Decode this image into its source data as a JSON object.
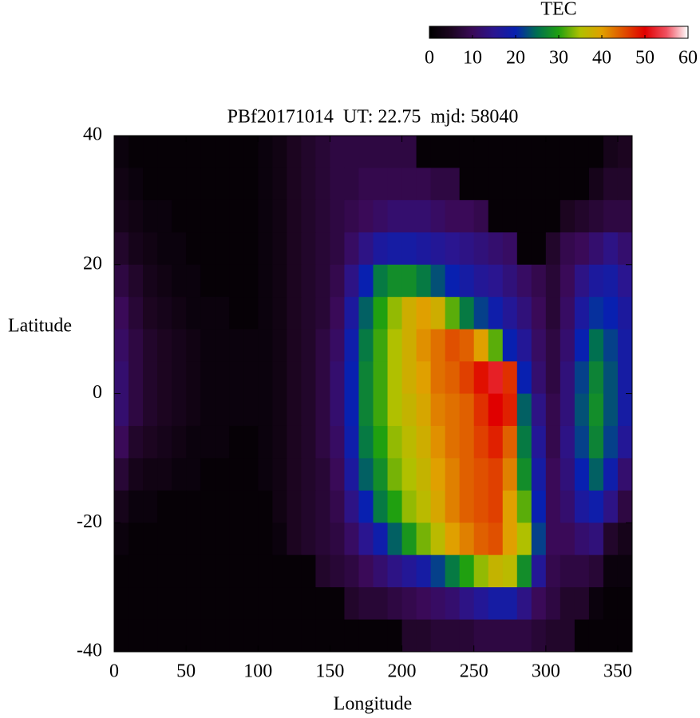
{
  "chart_data": {
    "type": "heatmap",
    "title": "PBf20171014  UT: 22.75  mjd: 58040",
    "x_label": "Longitude",
    "y_label": "Latitude",
    "xlim": [
      0,
      360
    ],
    "xticks": [
      0,
      50,
      100,
      150,
      200,
      250,
      300,
      350
    ],
    "ylim": [
      -40,
      40
    ],
    "yticks": [
      -40,
      -20,
      0,
      20,
      40
    ],
    "colorbar": {
      "label": "TEC",
      "clim": [
        0,
        60
      ],
      "ticks": [
        0,
        10,
        20,
        30,
        40,
        50,
        60
      ],
      "colors": [
        "#000000",
        "#1c0520",
        "#3a0a58",
        "#2a1590",
        "#0820b0",
        "#007050",
        "#20a010",
        "#b0c000",
        "#e0a000",
        "#e05000",
        "#e00000",
        "#f05060",
        "#ffffff"
      ]
    },
    "z": [
      [
        2,
        1,
        1,
        1,
        1,
        1,
        1,
        1,
        1,
        1,
        2,
        3,
        5,
        6,
        7,
        8,
        8,
        8,
        8,
        8,
        8,
        1,
        1,
        1,
        1,
        1,
        1,
        1,
        1,
        1,
        1,
        1,
        1,
        1,
        4,
        5
      ],
      [
        3,
        2,
        1,
        1,
        1,
        1,
        1,
        1,
        1,
        1,
        2,
        3,
        5,
        6,
        7,
        8,
        8,
        9,
        9,
        9,
        9,
        9,
        8,
        8,
        1,
        1,
        1,
        1,
        1,
        1,
        1,
        1,
        1,
        4,
        6,
        6
      ],
      [
        4,
        3,
        2,
        2,
        1,
        1,
        1,
        1,
        1,
        1,
        2,
        3,
        5,
        6,
        7,
        8,
        9,
        10,
        11,
        12,
        12,
        12,
        11,
        10,
        10,
        9,
        1,
        1,
        1,
        1,
        1,
        5,
        6,
        7,
        8,
        8
      ],
      [
        6,
        4,
        3,
        2,
        2,
        1,
        1,
        1,
        1,
        1,
        2,
        3,
        5,
        6,
        7,
        8,
        11,
        14,
        17,
        18,
        18,
        17,
        16,
        15,
        14,
        13,
        12,
        11,
        1,
        1,
        6,
        9,
        10,
        12,
        14,
        12
      ],
      [
        8,
        6,
        4,
        3,
        2,
        2,
        1,
        1,
        1,
        1,
        2,
        3,
        5,
        6,
        7,
        9,
        14,
        20,
        26,
        28,
        28,
        26,
        23,
        20,
        18,
        16,
        15,
        13,
        11,
        9,
        7,
        10,
        14,
        17,
        18,
        15
      ],
      [
        10,
        7,
        5,
        4,
        3,
        2,
        2,
        2,
        1,
        1,
        2,
        3,
        5,
        6,
        7,
        10,
        17,
        24,
        30,
        34,
        38,
        40,
        38,
        32,
        26,
        22,
        19,
        16,
        13,
        10,
        7,
        11,
        17,
        21,
        20,
        17
      ],
      [
        11,
        8,
        6,
        5,
        4,
        3,
        2,
        2,
        2,
        2,
        2,
        3,
        5,
        6,
        8,
        11,
        19,
        26,
        31,
        35,
        38,
        41,
        43,
        45,
        44,
        40,
        32,
        20,
        16,
        11,
        8,
        12,
        20,
        25,
        22,
        18
      ],
      [
        12,
        8,
        6,
        5,
        4,
        3,
        2,
        2,
        2,
        2,
        2,
        3,
        5,
        6,
        8,
        12,
        20,
        27,
        31,
        35,
        38,
        40,
        43,
        44,
        46,
        49,
        52,
        47,
        20,
        12,
        8,
        13,
        22,
        27,
        23,
        18
      ],
      [
        12,
        8,
        6,
        5,
        4,
        3,
        2,
        2,
        2,
        2,
        2,
        3,
        5,
        6,
        8,
        12,
        20,
        27,
        31,
        35,
        37,
        39,
        42,
        43,
        44,
        47,
        50,
        48,
        24,
        14,
        9,
        13,
        23,
        28,
        23,
        18
      ],
      [
        10,
        6,
        5,
        4,
        3,
        2,
        2,
        2,
        1,
        1,
        2,
        3,
        5,
        6,
        8,
        11,
        19,
        26,
        30,
        34,
        36,
        38,
        41,
        43,
        44,
        46,
        48,
        44,
        26,
        16,
        9,
        14,
        22,
        27,
        22,
        16
      ],
      [
        7,
        4,
        3,
        3,
        2,
        2,
        1,
        1,
        1,
        1,
        2,
        3,
        5,
        6,
        7,
        10,
        17,
        24,
        28,
        33,
        35,
        37,
        40,
        42,
        44,
        45,
        46,
        42,
        28,
        18,
        10,
        13,
        20,
        24,
        19,
        12
      ],
      [
        4,
        2,
        2,
        1,
        1,
        1,
        1,
        1,
        1,
        1,
        1,
        3,
        5,
        6,
        7,
        9,
        14,
        20,
        26,
        30,
        34,
        36,
        39,
        42,
        44,
        45,
        46,
        40,
        32,
        20,
        10,
        12,
        17,
        19,
        14,
        8
      ],
      [
        2,
        1,
        1,
        1,
        1,
        1,
        1,
        1,
        1,
        1,
        1,
        2,
        5,
        6,
        7,
        8,
        11,
        15,
        19,
        24,
        29,
        33,
        36,
        40,
        42,
        44,
        45,
        40,
        35,
        22,
        10,
        10,
        12,
        13,
        6,
        4
      ],
      [
        1,
        1,
        1,
        1,
        1,
        1,
        1,
        1,
        1,
        1,
        1,
        1,
        1,
        1,
        6,
        7,
        8,
        10,
        12,
        14,
        16,
        18,
        22,
        26,
        30,
        34,
        37,
        36,
        28,
        16,
        9,
        8,
        8,
        7,
        2,
        2
      ],
      [
        1,
        1,
        1,
        1,
        1,
        1,
        1,
        1,
        1,
        1,
        1,
        1,
        1,
        1,
        1,
        1,
        6,
        7,
        7,
        8,
        9,
        10,
        11,
        12,
        14,
        16,
        18,
        18,
        14,
        10,
        8,
        6,
        6,
        2,
        1,
        1
      ],
      [
        1,
        1,
        1,
        1,
        1,
        1,
        1,
        1,
        1,
        1,
        1,
        1,
        1,
        1,
        1,
        1,
        1,
        1,
        1,
        1,
        6,
        6,
        7,
        7,
        7,
        8,
        8,
        8,
        8,
        7,
        6,
        6,
        1,
        1,
        1,
        1
      ]
    ]
  }
}
